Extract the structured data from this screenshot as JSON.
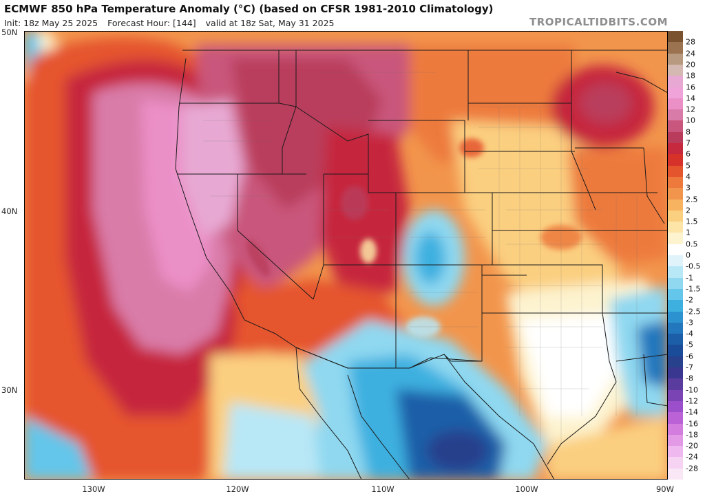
{
  "header": {
    "title": "ECMWF 850 hPa Temperature Anomaly (°C) (based on CFSR 1981-2010 Climatology)",
    "init": "Init: 18z May 25 2025",
    "forecast_hour": "Forecast Hour: [144]",
    "valid": "valid at 18z Sat, May 31 2025"
  },
  "brand": "TROPICALTIDBITS.COM",
  "latitude_labels": [
    "50N",
    "40N",
    "30N"
  ],
  "longitude_labels": [
    "130W",
    "120W",
    "110W",
    "100W",
    "90W"
  ],
  "colorbar": {
    "labels": [
      "28",
      "24",
      "20",
      "18",
      "16",
      "14",
      "12",
      "10",
      "8",
      "7",
      "6",
      "5",
      "4",
      "3",
      "2.5",
      "2",
      "1.5",
      "1",
      "0.5",
      "0",
      "-0.5",
      "-1",
      "-1.5",
      "-2",
      "-2.5",
      "-3",
      "-4",
      "-5",
      "-6",
      "-7",
      "-8",
      "-10",
      "-12",
      "-14",
      "-16",
      "-18",
      "-20",
      "-24",
      "-28"
    ],
    "colors": [
      "#7a5230",
      "#9c7350",
      "#b89a80",
      "#d4b8b2",
      "#e7a9d3",
      "#f0a3d9",
      "#eb8fc7",
      "#d97ba8",
      "#c9567c",
      "#b93c5c",
      "#c6283e",
      "#d7322a",
      "#e5552d",
      "#ed7a3c",
      "#f2954c",
      "#f7b360",
      "#fbcf80",
      "#fce5a6",
      "#fdf3cf",
      "#ffffff",
      "#e0f3fb",
      "#b8e7f6",
      "#8fd8f0",
      "#64c6ea",
      "#3eb0e0",
      "#2d93d0",
      "#2377bd",
      "#1d5ea8",
      "#1b4c99",
      "#27418c",
      "#3a3790",
      "#5a3c9f",
      "#7b44b5",
      "#9c4fca",
      "#bb62d6",
      "#d37ddf",
      "#e39ae6",
      "#efb8ee",
      "#f6d3f2",
      "#f9e7f5"
    ]
  }
}
